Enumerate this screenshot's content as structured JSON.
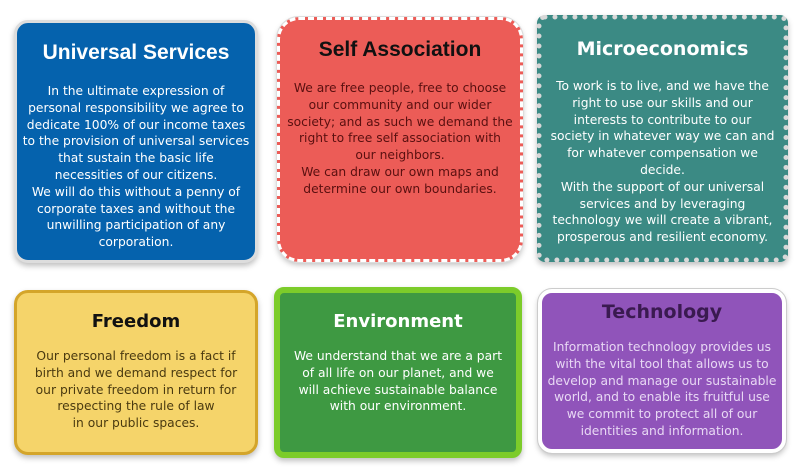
{
  "colors": {
    "universal": "#0562ad",
    "association": "#ec5c57",
    "micro": "#3b8a84",
    "freedom": "#f5d46a",
    "environment": "#3e9942",
    "technology": "#9054ba"
  },
  "cards": [
    {
      "title": "Universal Services",
      "body": "In the ultimate expression of\npersonal responsibility we agree to\ndedicate 100% of our income taxes\nto the provision of universal services\nthat sustain the basic life\nnecessities of our citizens.\nWe will do this without a penny of\ncorporate taxes and without the\nunwilling participation of any\ncorporation."
    },
    {
      "title": "Self Association",
      "body": "We are free people, free to choose\nour community and our wider\nsociety; and as such we demand the\nright to free self association with\nour neighbors.\nWe can draw our own maps and\ndetermine our own boundaries."
    },
    {
      "title": "Microeconomics",
      "body": "To work is to live, and we have the\nright to use our skills and our\ninterests to contribute to our\nsociety in whatever way we can and\nfor whatever compensation we\ndecide.\nWith the support of our universal\nservices and by leveraging\ntechnology we will create a vibrant,\nprosperous and resilient economy."
    },
    {
      "title": "Freedom",
      "body": "Our personal freedom is a fact if\nbirth and we demand respect for\nour private freedom in return for\nrespecting the rule of law\nin our public spaces."
    },
    {
      "title": "Environment",
      "body": "We understand that we are a part\nof all life on our planet, and we\nwill achieve sustainable balance\nwith our environment."
    },
    {
      "title": "Technology",
      "body": "Information technology provides us\nwith the vital tool that allows us to\ndevelop and manage our sustainable\nworld, and to enable its fruitful use\nwe commit to protect all of our\nidentities and information."
    }
  ]
}
